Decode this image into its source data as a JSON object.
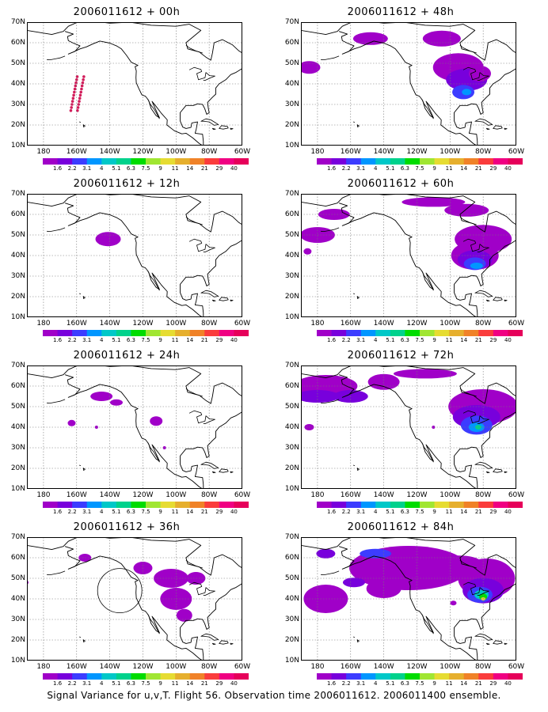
{
  "colorbar": {
    "labels": [
      "1.6",
      "2.2",
      "3.1",
      "4",
      "5.1",
      "6.3",
      "7.5",
      "9",
      "11",
      "14",
      "21",
      "29",
      "40"
    ],
    "colors": [
      "#a000c8",
      "#7800dc",
      "#3c3cff",
      "#0096ff",
      "#00c8c8",
      "#00d28c",
      "#00dc00",
      "#a0e632",
      "#e6dc32",
      "#e6af2d",
      "#f08228",
      "#fa3c3c",
      "#f00082"
    ]
  },
  "axes": {
    "y_labels": [
      "70N",
      "60N",
      "50N",
      "40N",
      "30N",
      "20N",
      "10N"
    ],
    "x_labels": [
      "180",
      "160W",
      "140W",
      "120W",
      "100W",
      "80W",
      "60W"
    ],
    "lon_range": [
      -190,
      -60
    ],
    "lat_range": [
      10,
      70
    ]
  },
  "panels": [
    {
      "title": "2006011612 + 00h"
    },
    {
      "title": "2006011612 + 48h"
    },
    {
      "title": "2006011612 + 12h"
    },
    {
      "title": "2006011612 + 60h"
    },
    {
      "title": "2006011612 + 24h"
    },
    {
      "title": "2006011612 + 72h"
    },
    {
      "title": "2006011612 + 36h"
    },
    {
      "title": "2006011612 + 84h"
    }
  ],
  "caption": "Signal Variance for u,v,T. Flight 56. Observation time 2006011612. 2006011400 ensemble."
}
